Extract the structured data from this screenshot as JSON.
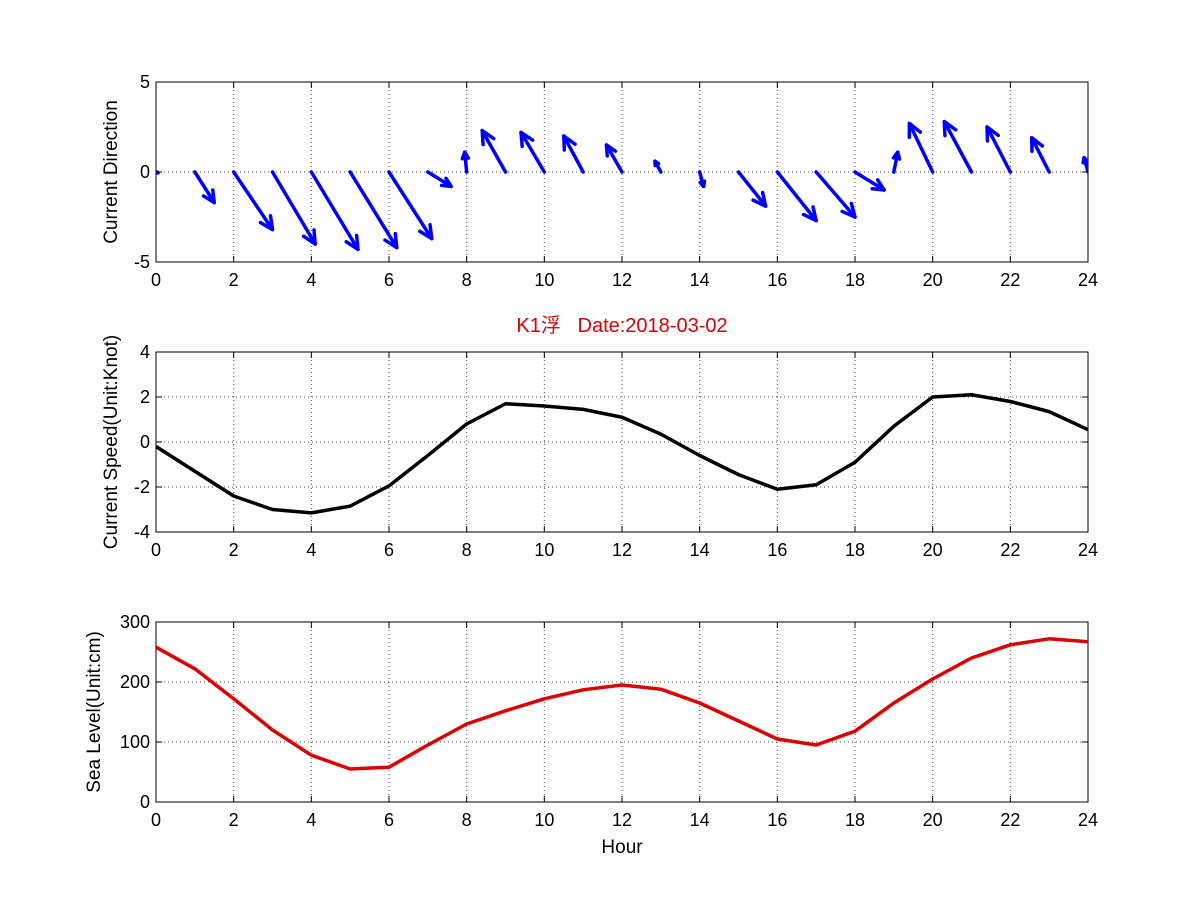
{
  "colors": {
    "direction": "#0000ff",
    "speed": "#000000",
    "sealevel": "#dd0000",
    "title": "#dd0000"
  },
  "chart_data": [
    {
      "type": "quiver",
      "title": "",
      "xlabel": "",
      "ylabel": "Current Direction",
      "xlim": [
        0,
        24
      ],
      "ylim": [
        -5,
        5
      ],
      "xticks": [
        0,
        2,
        4,
        6,
        8,
        10,
        12,
        14,
        16,
        18,
        20,
        22,
        24
      ],
      "yticks": [
        -5,
        0,
        5
      ],
      "grid": true,
      "hours": [
        0,
        1,
        2,
        3,
        4,
        5,
        6,
        7,
        8,
        9,
        10,
        11,
        12,
        13,
        14,
        15,
        16,
        17,
        18,
        19,
        20,
        21,
        22,
        23,
        24
      ],
      "u": [
        0.05,
        0.5,
        1.0,
        1.1,
        1.2,
        1.2,
        1.1,
        0.6,
        -0.05,
        -0.6,
        -0.6,
        -0.5,
        -0.4,
        -0.15,
        0.1,
        0.7,
        1.0,
        1.0,
        0.75,
        0.1,
        -0.6,
        -0.7,
        -0.6,
        -0.45,
        -0.1
      ],
      "v": [
        -0.05,
        -1.7,
        -3.2,
        -4.0,
        -4.3,
        -4.2,
        -3.7,
        -0.8,
        1.1,
        2.3,
        2.2,
        2.0,
        1.5,
        0.6,
        -0.8,
        -1.9,
        -2.7,
        -2.5,
        -1.0,
        1.1,
        2.7,
        2.8,
        2.5,
        1.9,
        0.8
      ]
    },
    {
      "type": "line",
      "title": "K1浮   Date:2018-03-02",
      "xlabel": "",
      "ylabel": "Current Speed(Unit:Knot)",
      "xlim": [
        0,
        24
      ],
      "ylim": [
        -4,
        4
      ],
      "xticks": [
        0,
        2,
        4,
        6,
        8,
        10,
        12,
        14,
        16,
        18,
        20,
        22,
        24
      ],
      "yticks": [
        -4,
        -2,
        0,
        2,
        4
      ],
      "grid": true,
      "series": [
        {
          "x": [
            0,
            1,
            2,
            3,
            4,
            5,
            6,
            7,
            8,
            9,
            10,
            11,
            12,
            13,
            14,
            15,
            16,
            17,
            18,
            19,
            20,
            21,
            22,
            23,
            24
          ],
          "values": [
            -0.2,
            -1.3,
            -2.4,
            -3.0,
            -3.15,
            -2.85,
            -1.95,
            -0.6,
            0.8,
            1.7,
            1.6,
            1.45,
            1.1,
            0.35,
            -0.6,
            -1.45,
            -2.1,
            -1.9,
            -0.9,
            0.7,
            2.0,
            2.1,
            1.8,
            1.35,
            0.55
          ]
        }
      ]
    },
    {
      "type": "line",
      "title": "",
      "xlabel": "Hour",
      "ylabel": "Sea Level(Unit:cm)",
      "xlim": [
        0,
        24
      ],
      "ylim": [
        0,
        300
      ],
      "xticks": [
        0,
        2,
        4,
        6,
        8,
        10,
        12,
        14,
        16,
        18,
        20,
        22,
        24
      ],
      "yticks": [
        0,
        100,
        200,
        300
      ],
      "grid": true,
      "series": [
        {
          "x": [
            0,
            1,
            2,
            3,
            4,
            5,
            6,
            7,
            8,
            9,
            10,
            11,
            12,
            13,
            14,
            15,
            16,
            17,
            18,
            19,
            20,
            21,
            22,
            23,
            24
          ],
          "values": [
            258,
            222,
            172,
            120,
            78,
            55,
            58,
            95,
            130,
            152,
            172,
            187,
            195,
            188,
            165,
            135,
            105,
            95,
            118,
            165,
            205,
            240,
            262,
            272,
            267
          ]
        }
      ]
    }
  ]
}
